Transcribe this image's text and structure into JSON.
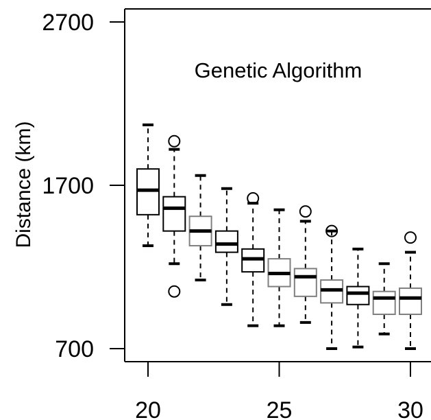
{
  "chart_data": {
    "type": "boxplot",
    "title": "Genetic Algorithm",
    "xlabel": "",
    "ylabel": "Distance (km)",
    "ylim": [
      700,
      2700
    ],
    "xlim": [
      20,
      30
    ],
    "yticks": [
      700,
      1700,
      2700
    ],
    "xticks": [
      20,
      25,
      30
    ],
    "x": [
      20,
      21,
      22,
      23,
      24,
      25,
      26,
      27,
      28,
      29,
      30
    ],
    "boxes": [
      {
        "x": 20,
        "whisker_low": 1330,
        "q1": 1520,
        "median": 1670,
        "q3": 1800,
        "whisker_high": 2070,
        "outliers": []
      },
      {
        "x": 21,
        "whisker_low": 1220,
        "q1": 1420,
        "median": 1560,
        "q3": 1630,
        "whisker_high": 1920,
        "outliers": [
          1970,
          1050
        ]
      },
      {
        "x": 22,
        "whisker_low": 1120,
        "q1": 1330,
        "median": 1420,
        "q3": 1510,
        "whisker_high": 1760,
        "outliers": []
      },
      {
        "x": 23,
        "whisker_low": 970,
        "q1": 1290,
        "median": 1340,
        "q3": 1420,
        "whisker_high": 1680,
        "outliers": []
      },
      {
        "x": 24,
        "whisker_low": 840,
        "q1": 1170,
        "median": 1250,
        "q3": 1310,
        "whisker_high": 1590,
        "outliers": [
          1620
        ]
      },
      {
        "x": 25,
        "whisker_low": 840,
        "q1": 1080,
        "median": 1160,
        "q3": 1250,
        "whisker_high": 1550,
        "outliers": []
      },
      {
        "x": 26,
        "whisker_low": 860,
        "q1": 1020,
        "median": 1140,
        "q3": 1190,
        "whisker_high": 1480,
        "outliers": [
          1540
        ]
      },
      {
        "x": 27,
        "whisker_low": 700,
        "q1": 980,
        "median": 1060,
        "q3": 1120,
        "whisker_high": 1420,
        "outliers": [
          1420
        ]
      },
      {
        "x": 28,
        "whisker_low": 710,
        "q1": 970,
        "median": 1040,
        "q3": 1080,
        "whisker_high": 1310,
        "outliers": []
      },
      {
        "x": 29,
        "whisker_low": 790,
        "q1": 910,
        "median": 1010,
        "q3": 1050,
        "whisker_high": 1220,
        "outliers": []
      },
      {
        "x": 30,
        "whisker_low": 700,
        "q1": 910,
        "median": 1010,
        "q3": 1070,
        "whisker_high": 1290,
        "outliers": [
          1380
        ]
      }
    ],
    "box_outline_colors": [
      "#000000",
      "#000000",
      "#7f7f7f",
      "#000000",
      "#000000",
      "#7f7f7f",
      "#7f7f7f",
      "#7f7f7f",
      "#000000",
      "#7f7f7f",
      "#7f7f7f"
    ],
    "grid": false,
    "legend": "none"
  }
}
